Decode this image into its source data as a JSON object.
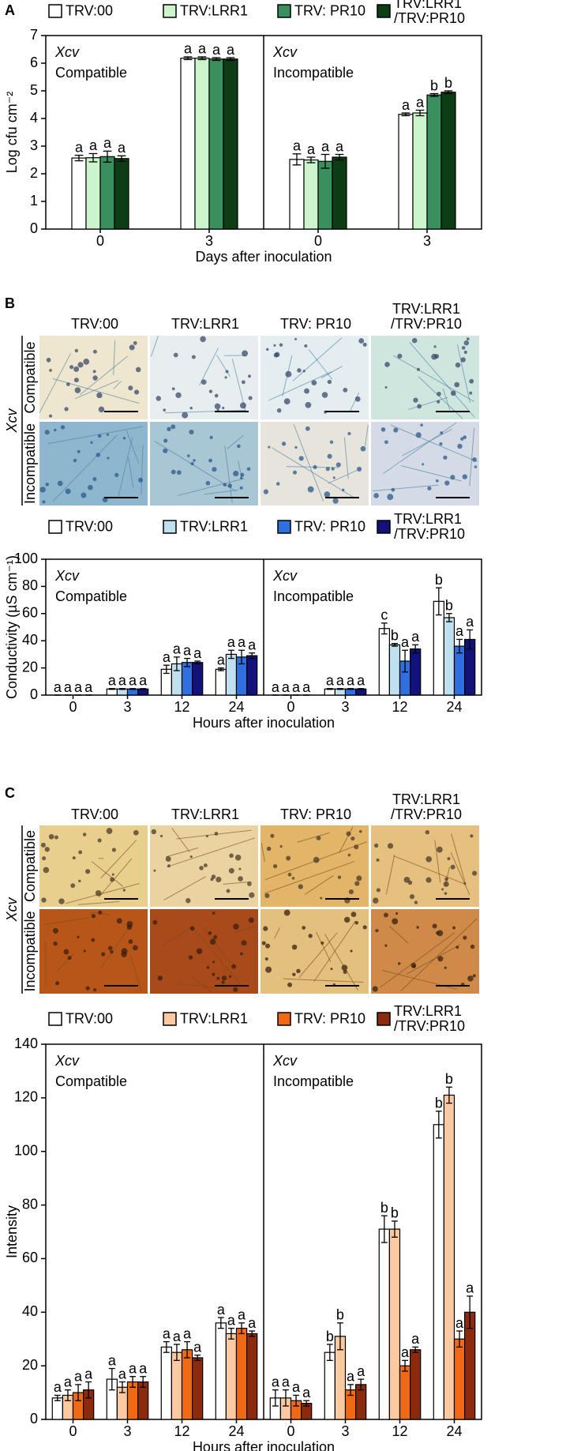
{
  "chart_data": [
    {
      "type": "bar",
      "panel": "A",
      "ylabel": "Log cfu cm⁻²",
      "xlabel": "Days after inoculation",
      "categories": [
        "0",
        "3",
        "0",
        "3"
      ],
      "groups": [
        {
          "pathogen": "Xcv",
          "condition": "Compatible"
        },
        {
          "pathogen": "Xcv",
          "condition": "Incompatible"
        }
      ],
      "ylim": [
        0,
        7
      ],
      "yticks": [
        0,
        1,
        2,
        3,
        4,
        5,
        6,
        7
      ],
      "series": [
        {
          "name": "TRV:00",
          "color": "#ffffff",
          "values": [
            2.57,
            6.18,
            2.52,
            4.15
          ],
          "errors": [
            0.1,
            0.05,
            0.2,
            0.05
          ],
          "letters": [
            "a",
            "a",
            "a",
            "a"
          ]
        },
        {
          "name": "TRV:LRR1",
          "color": "#ccf5cc",
          "values": [
            2.58,
            6.18,
            2.5,
            4.2
          ],
          "errors": [
            0.15,
            0.05,
            0.1,
            0.1
          ],
          "letters": [
            "a",
            "a",
            "a",
            "a"
          ]
        },
        {
          "name": "TRV: PR10",
          "color": "#3a8f5f",
          "values": [
            2.62,
            6.15,
            2.45,
            4.85
          ],
          "errors": [
            0.2,
            0.05,
            0.25,
            0.05
          ],
          "letters": [
            "a",
            "a",
            "a",
            "b"
          ]
        },
        {
          "name": "TRV:LRR1 /TRV:PR10",
          "color": "#0c3d14",
          "values": [
            2.55,
            6.15,
            2.6,
            4.95
          ],
          "errors": [
            0.1,
            0.05,
            0.1,
            0.05
          ],
          "letters": [
            "a",
            "a",
            "a",
            "b"
          ]
        }
      ]
    },
    {
      "type": "bar",
      "ylabel": "Conductivity (µS cm⁻¹)",
      "xlabel": "Hours after inoculation",
      "categories": [
        "0",
        "3",
        "12",
        "24",
        "0",
        "3",
        "12",
        "24"
      ],
      "groups": [
        {
          "pathogen": "Xcv",
          "condition": "Compatible"
        },
        {
          "pathogen": "Xcv",
          "condition": "Incompatible"
        }
      ],
      "ylim": [
        0,
        100
      ],
      "yticks": [
        0,
        20,
        40,
        60,
        80,
        100
      ],
      "series": [
        {
          "name": "TRV:00",
          "color": "#ffffff",
          "values": [
            0,
            4.5,
            19,
            19,
            0,
            4.5,
            49,
            69
          ],
          "errors": [
            0,
            0.3,
            3,
            1,
            0,
            0.3,
            4,
            10
          ],
          "letters": [
            "a",
            "a",
            "a",
            "a",
            "a",
            "a",
            "c",
            "b"
          ]
        },
        {
          "name": "TRV:LRR1",
          "color": "#bfe0ee",
          "values": [
            0,
            4.5,
            23,
            30,
            0,
            4.5,
            37,
            57
          ],
          "errors": [
            0,
            0.3,
            5,
            3,
            0,
            0.3,
            1,
            3
          ],
          "letters": [
            "a",
            "a",
            "a",
            "a",
            "a",
            "a",
            "b",
            "b"
          ]
        },
        {
          "name": "TRV: PR10",
          "color": "#2f6fe0",
          "values": [
            0,
            4.5,
            24,
            28,
            0,
            4.5,
            25,
            36
          ],
          "errors": [
            0,
            0.3,
            3,
            5,
            0,
            0.3,
            8,
            5
          ],
          "letters": [
            "a",
            "a",
            "a",
            "a",
            "a",
            "a",
            "a",
            "a"
          ]
        },
        {
          "name": "TRV:LRR1 /TRV:PR10",
          "color": "#12127a",
          "values": [
            0,
            4.5,
            24,
            29,
            0,
            4.5,
            34,
            41
          ],
          "errors": [
            0,
            0.3,
            1,
            2,
            0,
            0.3,
            3,
            7
          ],
          "letters": [
            "a",
            "a",
            "a",
            "a",
            "a",
            "a",
            "a",
            "a"
          ]
        }
      ]
    },
    {
      "type": "bar",
      "ylabel": "Intensity",
      "xlabel": "Hours after inoculation",
      "categories": [
        "0",
        "3",
        "12",
        "24",
        "0",
        "3",
        "12",
        "24"
      ],
      "groups": [
        {
          "pathogen": "Xcv",
          "condition": "Compatible"
        },
        {
          "pathogen": "Xcv",
          "condition": "Incompatible"
        }
      ],
      "ylim": [
        0,
        140
      ],
      "yticks": [
        0,
        20,
        40,
        60,
        80,
        100,
        120,
        140
      ],
      "series": [
        {
          "name": "TRV:00",
          "color": "#ffffff",
          "values": [
            8,
            15,
            27,
            36,
            8,
            25,
            71,
            110
          ],
          "errors": [
            1,
            4,
            2,
            2,
            3,
            3,
            5,
            5
          ],
          "letters": [
            "a",
            "a",
            "a",
            "a",
            "a",
            "b",
            "b",
            "b"
          ]
        },
        {
          "name": "TRV:LRR1",
          "color": "#fcc9a0",
          "values": [
            9,
            12,
            25,
            32,
            8,
            31,
            71,
            121
          ],
          "errors": [
            2,
            2,
            3,
            2,
            3,
            5,
            3,
            3
          ],
          "letters": [
            "a",
            "a",
            "a",
            "a",
            "a",
            "b",
            "b",
            "b"
          ]
        },
        {
          "name": "TRV: PR10",
          "color": "#f06a15",
          "values": [
            10,
            14,
            26,
            34,
            7,
            11,
            20,
            30
          ],
          "errors": [
            3,
            2,
            3,
            2,
            2,
            2,
            2,
            3
          ],
          "letters": [
            "a",
            "a",
            "a",
            "a",
            "a",
            "a",
            "a",
            "a"
          ]
        },
        {
          "name": "TRV:LRR1 /TRV:PR10",
          "color": "#8c2a0e",
          "values": [
            11,
            14,
            23,
            32,
            6,
            13,
            26,
            40
          ],
          "errors": [
            3,
            2,
            1,
            1,
            1,
            2,
            1,
            6
          ],
          "letters": [
            "a",
            "a",
            "a",
            "a",
            "a",
            "a",
            "a",
            "a"
          ]
        }
      ]
    }
  ],
  "image_panels": [
    {
      "panel": "B",
      "columns": [
        "TRV:00",
        "TRV:LRR1",
        "TRV: PR10",
        "TRV:LRR1 /TRV:PR10"
      ],
      "pathogen": "Xcv",
      "rows": [
        "Compatible",
        "Incompatible"
      ]
    },
    {
      "panel": "C",
      "columns": [
        "TRV:00",
        "TRV:LRR1",
        "TRV: PR10",
        "TRV:LRR1 /TRV:PR10"
      ],
      "pathogen": "Xcv",
      "rows": [
        "Compatible",
        "Incompatible"
      ]
    }
  ]
}
